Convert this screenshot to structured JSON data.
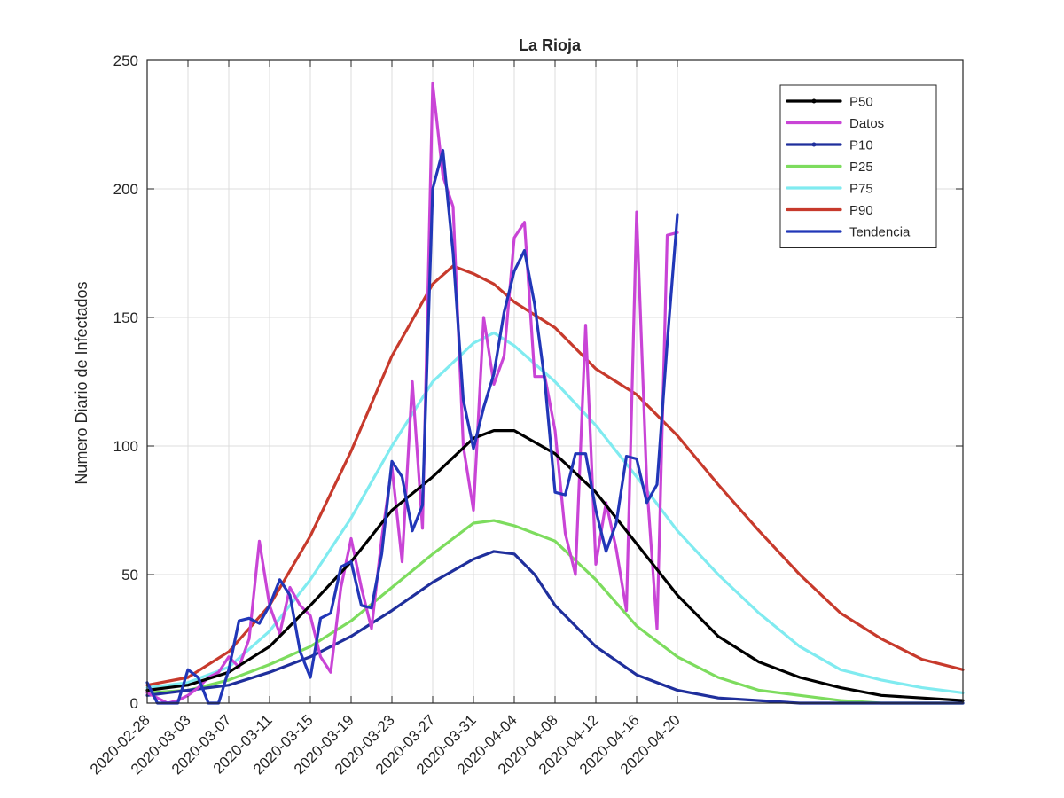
{
  "chart_data": {
    "type": "line",
    "title": "La Rioja",
    "xlabel": "",
    "ylabel": "Numero Diario de Infectados",
    "ylim": [
      0,
      250
    ],
    "yticks": [
      0,
      50,
      100,
      150,
      200,
      250
    ],
    "xlim": [
      "2020-02-28",
      "2020-05-18"
    ],
    "x_tick_labels": [
      "2020-02-28",
      "2020-03-03",
      "2020-03-07",
      "2020-03-11",
      "2020-03-15",
      "2020-03-19",
      "2020-03-23",
      "2020-03-27",
      "2020-03-31",
      "2020-04-04",
      "2020-04-08",
      "2020-04-12",
      "2020-04-16",
      "2020-04-20"
    ],
    "grid": true,
    "legend_position": "top-right",
    "series": [
      {
        "name": "P50",
        "color": "#000000",
        "marker": "dot",
        "points": [
          [
            "2020-02-28",
            5
          ],
          [
            "2020-03-03",
            7
          ],
          [
            "2020-03-07",
            12
          ],
          [
            "2020-03-11",
            22
          ],
          [
            "2020-03-15",
            38
          ],
          [
            "2020-03-19",
            55
          ],
          [
            "2020-03-23",
            75
          ],
          [
            "2020-03-27",
            88
          ],
          [
            "2020-03-31",
            103
          ],
          [
            "2020-04-02",
            106
          ],
          [
            "2020-04-04",
            106
          ],
          [
            "2020-04-08",
            97
          ],
          [
            "2020-04-12",
            82
          ],
          [
            "2020-04-16",
            62
          ],
          [
            "2020-04-20",
            42
          ],
          [
            "2020-04-24",
            26
          ],
          [
            "2020-04-28",
            16
          ],
          [
            "2020-05-02",
            10
          ],
          [
            "2020-05-06",
            6
          ],
          [
            "2020-05-10",
            3
          ],
          [
            "2020-05-14",
            2
          ],
          [
            "2020-05-18",
            1
          ]
        ]
      },
      {
        "name": "Datos",
        "color": "#c944d6",
        "points": [
          [
            "2020-02-28",
            4
          ],
          [
            "2020-02-29",
            2
          ],
          [
            "2020-03-01",
            0
          ],
          [
            "2020-03-02",
            1
          ],
          [
            "2020-03-03",
            3
          ],
          [
            "2020-03-04",
            6
          ],
          [
            "2020-03-05",
            10
          ],
          [
            "2020-03-06",
            12
          ],
          [
            "2020-03-07",
            18
          ],
          [
            "2020-03-08",
            14
          ],
          [
            "2020-03-09",
            25
          ],
          [
            "2020-03-10",
            63
          ],
          [
            "2020-03-11",
            38
          ],
          [
            "2020-03-12",
            27
          ],
          [
            "2020-03-13",
            45
          ],
          [
            "2020-03-14",
            38
          ],
          [
            "2020-03-15",
            34
          ],
          [
            "2020-03-16",
            18
          ],
          [
            "2020-03-17",
            12
          ],
          [
            "2020-03-18",
            45
          ],
          [
            "2020-03-19",
            64
          ],
          [
            "2020-03-20",
            45
          ],
          [
            "2020-03-21",
            29
          ],
          [
            "2020-03-22",
            64
          ],
          [
            "2020-03-23",
            92
          ],
          [
            "2020-03-24",
            55
          ],
          [
            "2020-03-25",
            125
          ],
          [
            "2020-03-26",
            68
          ],
          [
            "2020-03-27",
            241
          ],
          [
            "2020-03-28",
            205
          ],
          [
            "2020-03-29",
            193
          ],
          [
            "2020-03-30",
            100
          ],
          [
            "2020-03-31",
            75
          ],
          [
            "2020-04-01",
            150
          ],
          [
            "2020-04-02",
            124
          ],
          [
            "2020-04-03",
            135
          ],
          [
            "2020-04-04",
            181
          ],
          [
            "2020-04-05",
            187
          ],
          [
            "2020-04-06",
            127
          ],
          [
            "2020-04-07",
            127
          ],
          [
            "2020-04-08",
            106
          ],
          [
            "2020-04-09",
            66
          ],
          [
            "2020-04-10",
            50
          ],
          [
            "2020-04-11",
            147
          ],
          [
            "2020-04-12",
            54
          ],
          [
            "2020-04-13",
            78
          ],
          [
            "2020-04-14",
            60
          ],
          [
            "2020-04-15",
            36
          ],
          [
            "2020-04-16",
            191
          ],
          [
            "2020-04-17",
            85
          ],
          [
            "2020-04-18",
            29
          ],
          [
            "2020-04-19",
            182
          ],
          [
            "2020-04-20",
            183
          ]
        ]
      },
      {
        "name": "P10",
        "color": "#1f2f9c",
        "marker": "dot",
        "points": [
          [
            "2020-02-28",
            3
          ],
          [
            "2020-03-03",
            5
          ],
          [
            "2020-03-07",
            7
          ],
          [
            "2020-03-11",
            12
          ],
          [
            "2020-03-15",
            18
          ],
          [
            "2020-03-19",
            26
          ],
          [
            "2020-03-23",
            36
          ],
          [
            "2020-03-27",
            47
          ],
          [
            "2020-03-31",
            56
          ],
          [
            "2020-04-02",
            59
          ],
          [
            "2020-04-04",
            58
          ],
          [
            "2020-04-06",
            50
          ],
          [
            "2020-04-08",
            38
          ],
          [
            "2020-04-12",
            22
          ],
          [
            "2020-04-16",
            11
          ],
          [
            "2020-04-20",
            5
          ],
          [
            "2020-04-24",
            2
          ],
          [
            "2020-04-28",
            1
          ],
          [
            "2020-05-02",
            0
          ],
          [
            "2020-05-18",
            0
          ]
        ]
      },
      {
        "name": "P25",
        "color": "#7ddc5e",
        "points": [
          [
            "2020-02-28",
            4
          ],
          [
            "2020-03-03",
            5
          ],
          [
            "2020-03-07",
            9
          ],
          [
            "2020-03-11",
            15
          ],
          [
            "2020-03-15",
            22
          ],
          [
            "2020-03-19",
            32
          ],
          [
            "2020-03-23",
            45
          ],
          [
            "2020-03-27",
            58
          ],
          [
            "2020-03-31",
            70
          ],
          [
            "2020-04-02",
            71
          ],
          [
            "2020-04-04",
            69
          ],
          [
            "2020-04-08",
            63
          ],
          [
            "2020-04-12",
            48
          ],
          [
            "2020-04-16",
            30
          ],
          [
            "2020-04-20",
            18
          ],
          [
            "2020-04-24",
            10
          ],
          [
            "2020-04-28",
            5
          ],
          [
            "2020-05-02",
            3
          ],
          [
            "2020-05-06",
            1
          ],
          [
            "2020-05-10",
            0
          ],
          [
            "2020-05-18",
            0
          ]
        ]
      },
      {
        "name": "P75",
        "color": "#80ebf0",
        "points": [
          [
            "2020-02-28",
            6
          ],
          [
            "2020-03-03",
            8
          ],
          [
            "2020-03-07",
            14
          ],
          [
            "2020-03-11",
            28
          ],
          [
            "2020-03-15",
            48
          ],
          [
            "2020-03-19",
            72
          ],
          [
            "2020-03-23",
            100
          ],
          [
            "2020-03-27",
            125
          ],
          [
            "2020-03-31",
            140
          ],
          [
            "2020-04-02",
            144
          ],
          [
            "2020-04-04",
            139
          ],
          [
            "2020-04-08",
            125
          ],
          [
            "2020-04-12",
            108
          ],
          [
            "2020-04-16",
            88
          ],
          [
            "2020-04-20",
            67
          ],
          [
            "2020-04-24",
            50
          ],
          [
            "2020-04-28",
            35
          ],
          [
            "2020-05-02",
            22
          ],
          [
            "2020-05-06",
            13
          ],
          [
            "2020-05-10",
            9
          ],
          [
            "2020-05-14",
            6
          ],
          [
            "2020-05-18",
            4
          ]
        ]
      },
      {
        "name": "P90",
        "color": "#c73a2c",
        "points": [
          [
            "2020-02-28",
            7
          ],
          [
            "2020-03-03",
            10
          ],
          [
            "2020-03-07",
            20
          ],
          [
            "2020-03-11",
            38
          ],
          [
            "2020-03-15",
            65
          ],
          [
            "2020-03-19",
            98
          ],
          [
            "2020-03-23",
            135
          ],
          [
            "2020-03-27",
            163
          ],
          [
            "2020-03-29",
            170
          ],
          [
            "2020-03-31",
            167
          ],
          [
            "2020-04-02",
            163
          ],
          [
            "2020-04-04",
            156
          ],
          [
            "2020-04-08",
            146
          ],
          [
            "2020-04-12",
            130
          ],
          [
            "2020-04-16",
            120
          ],
          [
            "2020-04-20",
            104
          ],
          [
            "2020-04-24",
            85
          ],
          [
            "2020-04-28",
            67
          ],
          [
            "2020-05-02",
            50
          ],
          [
            "2020-05-06",
            35
          ],
          [
            "2020-05-10",
            25
          ],
          [
            "2020-05-14",
            17
          ],
          [
            "2020-05-18",
            13
          ]
        ]
      },
      {
        "name": "Tendencia",
        "color": "#2137b8",
        "points": [
          [
            "2020-02-28",
            8
          ],
          [
            "2020-02-29",
            0
          ],
          [
            "2020-03-01",
            0
          ],
          [
            "2020-03-02",
            0
          ],
          [
            "2020-03-03",
            13
          ],
          [
            "2020-03-04",
            10
          ],
          [
            "2020-03-05",
            0
          ],
          [
            "2020-03-06",
            0
          ],
          [
            "2020-03-07",
            13
          ],
          [
            "2020-03-08",
            32
          ],
          [
            "2020-03-09",
            33
          ],
          [
            "2020-03-10",
            31
          ],
          [
            "2020-03-11",
            38
          ],
          [
            "2020-03-12",
            48
          ],
          [
            "2020-03-13",
            42
          ],
          [
            "2020-03-14",
            20
          ],
          [
            "2020-03-15",
            10
          ],
          [
            "2020-03-16",
            33
          ],
          [
            "2020-03-17",
            35
          ],
          [
            "2020-03-18",
            53
          ],
          [
            "2020-03-19",
            55
          ],
          [
            "2020-03-20",
            38
          ],
          [
            "2020-03-21",
            37
          ],
          [
            "2020-03-22",
            58
          ],
          [
            "2020-03-23",
            94
          ],
          [
            "2020-03-24",
            88
          ],
          [
            "2020-03-25",
            67
          ],
          [
            "2020-03-26",
            77
          ],
          [
            "2020-03-27",
            200
          ],
          [
            "2020-03-28",
            215
          ],
          [
            "2020-03-29",
            175
          ],
          [
            "2020-03-30",
            118
          ],
          [
            "2020-03-31",
            99
          ],
          [
            "2020-04-01",
            115
          ],
          [
            "2020-04-02",
            128
          ],
          [
            "2020-04-03",
            152
          ],
          [
            "2020-04-04",
            168
          ],
          [
            "2020-04-05",
            176
          ],
          [
            "2020-04-06",
            155
          ],
          [
            "2020-04-07",
            125
          ],
          [
            "2020-04-08",
            82
          ],
          [
            "2020-04-09",
            81
          ],
          [
            "2020-04-10",
            97
          ],
          [
            "2020-04-11",
            97
          ],
          [
            "2020-04-12",
            75
          ],
          [
            "2020-04-13",
            59
          ],
          [
            "2020-04-14",
            70
          ],
          [
            "2020-04-15",
            96
          ],
          [
            "2020-04-16",
            95
          ],
          [
            "2020-04-17",
            78
          ],
          [
            "2020-04-18",
            85
          ],
          [
            "2020-04-19",
            140
          ],
          [
            "2020-04-20",
            190
          ]
        ]
      }
    ]
  }
}
